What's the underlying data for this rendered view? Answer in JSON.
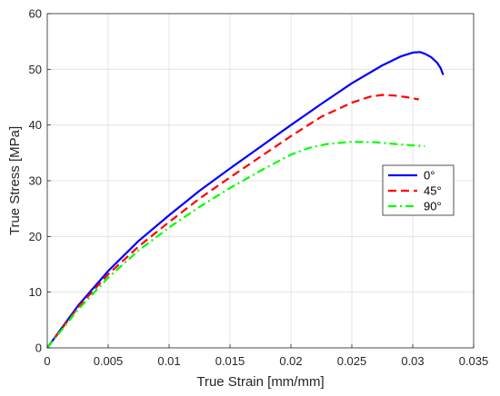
{
  "chart_data": {
    "type": "line",
    "xlabel": "True Strain [mm/mm]",
    "ylabel": "True Stress [MPa]",
    "xlim": [
      0,
      0.035
    ],
    "ylim": [
      0,
      60
    ],
    "x_ticks": [
      "0",
      "0.005",
      "0.01",
      "0.015",
      "0.02",
      "0.025",
      "0.03",
      "0.035"
    ],
    "y_ticks": [
      "0",
      "10",
      "20",
      "30",
      "40",
      "50",
      "60"
    ],
    "grid": true,
    "legend_position": "right",
    "series": [
      {
        "name": "0°",
        "color": "#0000ff",
        "style": "solid",
        "x": [
          0,
          0.0025,
          0.005,
          0.0075,
          0.01,
          0.0125,
          0.015,
          0.0175,
          0.02,
          0.0225,
          0.025,
          0.0275,
          0.029,
          0.03,
          0.0306,
          0.031,
          0.0315,
          0.032,
          0.0323,
          0.0325
        ],
        "y": [
          0,
          7.5,
          13.8,
          19.2,
          23.8,
          28.2,
          32.2,
          36.1,
          40,
          43.8,
          47.5,
          50.7,
          52.3,
          53,
          53.1,
          52.8,
          52.2,
          51.2,
          50.2,
          49
        ]
      },
      {
        "name": "45°",
        "color": "#ff0000",
        "style": "dashed",
        "x": [
          0,
          0.0025,
          0.005,
          0.0075,
          0.01,
          0.0125,
          0.015,
          0.0175,
          0.02,
          0.0225,
          0.025,
          0.0265,
          0.0275,
          0.0285,
          0.0295,
          0.0305
        ],
        "y": [
          0,
          7.2,
          13.2,
          18.2,
          22.6,
          26.8,
          30.6,
          34.3,
          38,
          41.5,
          44,
          45.1,
          45.4,
          45.3,
          45,
          44.6
        ]
      },
      {
        "name": "90°",
        "color": "#00ff00",
        "style": "dash-dot",
        "x": [
          0,
          0.0025,
          0.005,
          0.0075,
          0.01,
          0.0125,
          0.015,
          0.0175,
          0.02,
          0.0215,
          0.023,
          0.025,
          0.027,
          0.029,
          0.031
        ],
        "y": [
          0,
          6.8,
          12.6,
          17.5,
          21.6,
          25.3,
          28.7,
          31.8,
          34.7,
          35.9,
          36.6,
          37,
          36.9,
          36.5,
          36.2
        ]
      }
    ]
  }
}
